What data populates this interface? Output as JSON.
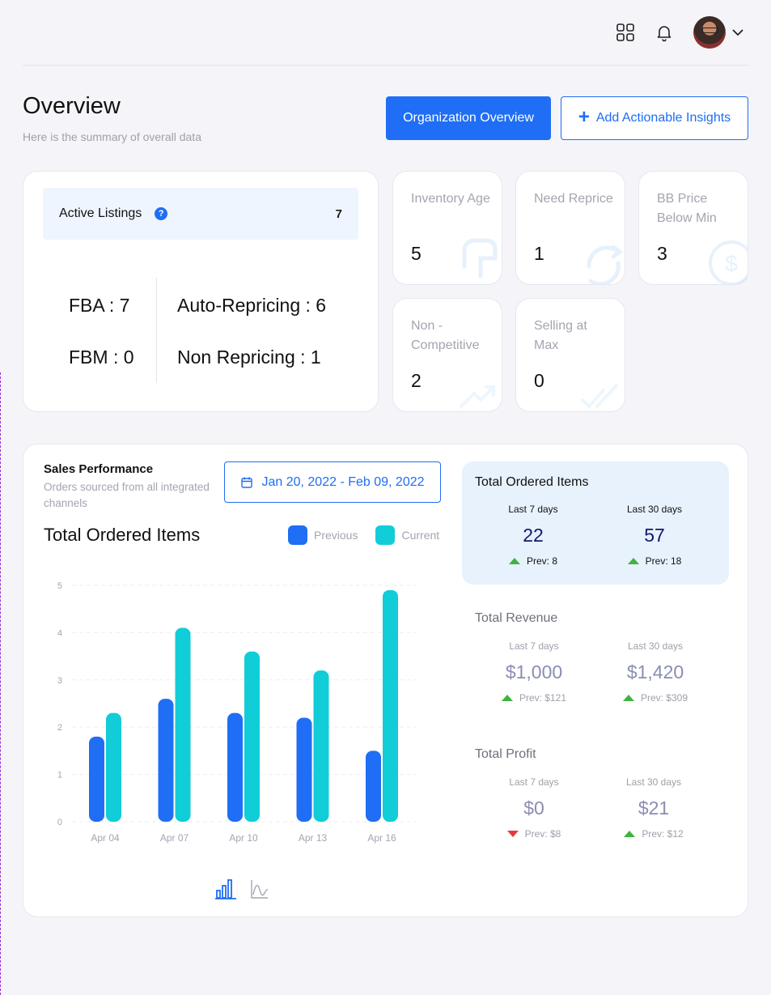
{
  "header": {
    "title": "Overview",
    "subtitle": "Here is the summary of overall data",
    "org_button": "Organization Overview",
    "insights_button": "Add Actionable Insights",
    "icons": [
      "apps-grid-icon",
      "bell-icon",
      "avatar",
      "chevron-down-icon"
    ]
  },
  "listings": {
    "title": "Active Listings",
    "count": "7",
    "fba": "FBA : 7",
    "fbm": "FBM : 0",
    "auto": "Auto-Repricing : 6",
    "non": "Non Repricing : 1"
  },
  "minis": [
    {
      "label": "Inventory Age",
      "value": "5"
    },
    {
      "label": "Need Reprice",
      "value": "1"
    },
    {
      "label": "BB Price Below Min",
      "value": "3"
    },
    {
      "label": "Non - Competitive",
      "value": "2"
    },
    {
      "label": "Selling at Max",
      "value": "0"
    }
  ],
  "sales": {
    "title": "Sales Performance",
    "subtitle": "Orders sourced from all integrated channels",
    "date_range": "Jan 20, 2022 - Feb 09, 2022",
    "chart_title": "Total Ordered Items",
    "legend_previous": "Previous",
    "legend_current": "Current"
  },
  "chart_data": {
    "type": "bar",
    "categories": [
      "Apr 04",
      "Apr 07",
      "Apr 10",
      "Apr 13",
      "Apr 16"
    ],
    "series": [
      {
        "name": "Previous",
        "values": [
          1.8,
          2.6,
          2.3,
          2.2,
          1.5
        ],
        "color": "#1f6ef5"
      },
      {
        "name": "Current",
        "values": [
          2.3,
          4.1,
          3.6,
          3.2,
          4.9
        ],
        "color": "#10cdd8"
      }
    ],
    "ylim": [
      0,
      5
    ],
    "yticks": [
      "0",
      "1",
      "2",
      "3",
      "4",
      "5"
    ],
    "grid": true
  },
  "summary": {
    "ordered": {
      "title": "Total Ordered Items",
      "d7_label": "Last 7 days",
      "d7_value": "22",
      "d7_prev": "Prev: 8",
      "d30_label": "Last 30 days",
      "d30_value": "57",
      "d30_prev": "Prev: 18"
    },
    "revenue": {
      "title": "Total Revenue",
      "d7_label": "Last 7 days",
      "d7_value": "$1,000",
      "d7_prev": "Prev: $121",
      "d30_label": "Last 30 days",
      "d30_value": "$1,420",
      "d30_prev": "Prev: $309"
    },
    "profit": {
      "title": "Total Profit",
      "d7_label": "Last 7 days",
      "d7_value": "$0",
      "d7_prev": "Prev: $8",
      "d30_label": "Last 30 days",
      "d30_value": "$21",
      "d30_prev": "Prev: $12"
    }
  },
  "colors": {
    "primary": "#1f6ef5",
    "current": "#10cdd8",
    "up": "#3fb33f",
    "down": "#e23a3a",
    "summary_highlight": "#e8f2fd"
  }
}
